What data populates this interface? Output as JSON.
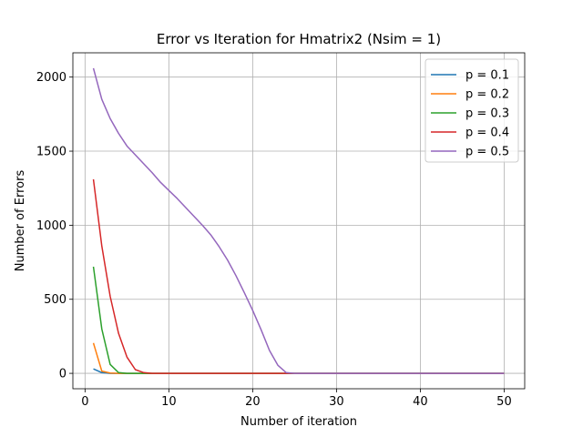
{
  "chart_data": {
    "type": "line",
    "title": "Error vs Iteration for Hmatrix2 (Nsim = 1)",
    "xlabel": "Number of iteration",
    "ylabel": "Number of Errors",
    "xlim": [
      -1.45,
      52.45
    ],
    "ylim": [
      -104,
      2164
    ],
    "xticks": [
      0,
      10,
      20,
      30,
      40,
      50
    ],
    "yticks": [
      0,
      500,
      1000,
      1500,
      2000
    ],
    "grid": true,
    "legend_position": "top-right",
    "series": [
      {
        "name": "p = 0.1",
        "color": "#1f77b4",
        "x": [
          1,
          2,
          3,
          4,
          5,
          6,
          7,
          8,
          9,
          10,
          15,
          20,
          25,
          30,
          35,
          40,
          45,
          50
        ],
        "y": [
          30,
          5,
          0,
          0,
          0,
          0,
          0,
          0,
          0,
          0,
          0,
          0,
          0,
          0,
          0,
          0,
          0,
          0
        ]
      },
      {
        "name": "p = 0.2",
        "color": "#ff7f0e",
        "x": [
          1,
          2,
          3,
          4,
          5,
          6,
          7,
          8,
          9,
          10,
          15,
          20,
          25,
          30,
          35,
          40,
          45,
          50
        ],
        "y": [
          205,
          15,
          2,
          0,
          0,
          0,
          0,
          0,
          0,
          0,
          0,
          0,
          0,
          0,
          0,
          0,
          0,
          0
        ]
      },
      {
        "name": "p = 0.3",
        "color": "#2ca02c",
        "x": [
          1,
          2,
          3,
          4,
          5,
          6,
          7,
          8,
          9,
          10,
          15,
          20,
          25,
          30,
          35,
          40,
          45,
          50
        ],
        "y": [
          720,
          300,
          60,
          5,
          0,
          0,
          0,
          0,
          0,
          0,
          0,
          0,
          0,
          0,
          0,
          0,
          0,
          0
        ]
      },
      {
        "name": "p = 0.4",
        "color": "#d62728",
        "x": [
          1,
          2,
          3,
          4,
          5,
          6,
          7,
          8,
          9,
          10,
          15,
          20,
          25,
          30,
          35,
          40,
          45,
          50
        ],
        "y": [
          1310,
          860,
          520,
          270,
          110,
          25,
          5,
          0,
          0,
          0,
          0,
          0,
          0,
          0,
          0,
          0,
          0,
          0
        ]
      },
      {
        "name": "p = 0.5",
        "color": "#9467bd",
        "x": [
          1,
          2,
          3,
          4,
          5,
          6,
          7,
          8,
          9,
          10,
          11,
          12,
          13,
          14,
          15,
          16,
          17,
          18,
          19,
          20,
          21,
          22,
          23,
          24,
          25,
          30,
          35,
          40,
          45,
          50
        ],
        "y": [
          2060,
          1850,
          1720,
          1620,
          1535,
          1475,
          1415,
          1355,
          1290,
          1235,
          1180,
          1120,
          1060,
          1000,
          935,
          855,
          765,
          660,
          545,
          425,
          295,
          155,
          55,
          5,
          0,
          0,
          0,
          0,
          0,
          0
        ]
      }
    ]
  }
}
